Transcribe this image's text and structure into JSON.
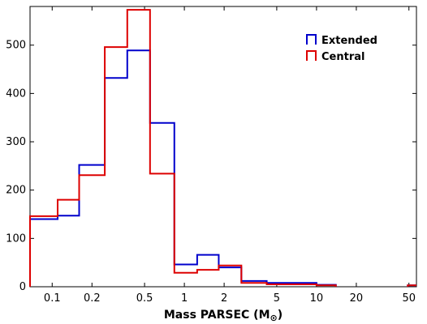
{
  "chart_data": {
    "type": "histogram",
    "xlabel": "Mass PARSEC (M",
    "xlabel_sub": "⊙",
    "xlabel_end": ")",
    "x_scale": "log",
    "xlim": [
      0.068,
      57
    ],
    "ylim": [
      0,
      580
    ],
    "x_ticks": [
      {
        "value": 0.1,
        "label": "0.1"
      },
      {
        "value": 0.2,
        "label": "0.2"
      },
      {
        "value": 0.5,
        "label": "0.5"
      },
      {
        "value": 1,
        "label": "1"
      },
      {
        "value": 2,
        "label": "2"
      },
      {
        "value": 5,
        "label": "5"
      },
      {
        "value": 10,
        "label": "10"
      },
      {
        "value": 20,
        "label": "20"
      },
      {
        "value": 50,
        "label": "50"
      }
    ],
    "y_ticks": [
      0,
      100,
      200,
      300,
      400,
      500
    ],
    "bin_edges": [
      0.068,
      0.11,
      0.16,
      0.25,
      0.37,
      0.55,
      0.84,
      1.25,
      1.82,
      2.7,
      4.2,
      10,
      14
    ],
    "series": [
      {
        "name": "Extended",
        "color": "#0000cc",
        "values": [
          140,
          147,
          252,
          432,
          489,
          339,
          46,
          66,
          40,
          12,
          8,
          4
        ]
      },
      {
        "name": "Central",
        "color": "#dd0000",
        "values": [
          146,
          180,
          231,
          496,
          573,
          234,
          29,
          35,
          44,
          8,
          5,
          3
        ]
      }
    ],
    "tail_bin": {
      "edges": [
        49,
        57
      ],
      "values": [
        3,
        3
      ]
    },
    "legend_position": "top-right",
    "grid": false
  }
}
